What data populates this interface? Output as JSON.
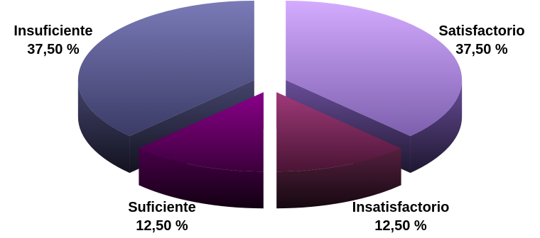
{
  "chart_data": {
    "type": "pie",
    "style": "3d-exploded",
    "slices": [
      {
        "label": "Satisfactorio",
        "value": 37.5,
        "display": "37,50 %",
        "color": "#c79cf5"
      },
      {
        "label": "Insatisfactorio",
        "value": 12.5,
        "display": "12,50 %",
        "color": "#8a2f6a"
      },
      {
        "label": "Suficiente",
        "value": 12.5,
        "display": "12,50 %",
        "color": "#7a007a"
      },
      {
        "label": "Insuficiente",
        "value": 37.5,
        "display": "37,50 %",
        "color": "#62629a"
      }
    ],
    "legend": "none"
  }
}
